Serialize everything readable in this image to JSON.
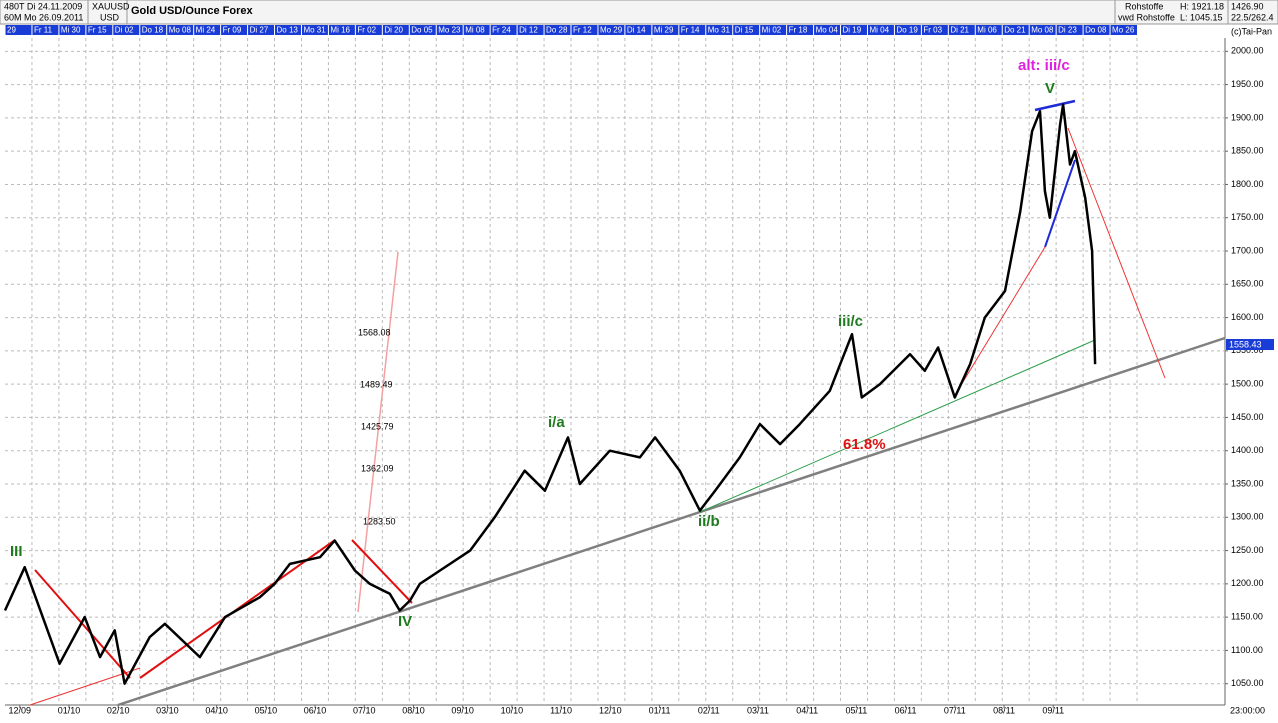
{
  "header": {
    "period": "480T Di 24.11.2009",
    "interval": "60M Mo 26.09.2011",
    "symbol": "XAUUSD",
    "currency": "USD",
    "title": "Gold USD/Ounce  Forex",
    "group": "Rohstoffe",
    "source": "vwd Rohstoffe",
    "high": "H: 1921.18",
    "low": "L: 1045.15",
    "last": "1426.90",
    "range": "22.5/262.4",
    "copyright": "(c)Tai-Pan",
    "dates": [
      "29",
      "Fr 11",
      "Mi 30",
      "Fr 15",
      "Di 02",
      "Do 18",
      "Mo 08",
      "Mi 24",
      "Fr 09",
      "Di 27",
      "Do 13",
      "Mo 31",
      "Mi 16",
      "Fr 02",
      "Di 20",
      "Do 05",
      "Mo 23",
      "Mi 08",
      "Fr 24",
      "Di 12",
      "Do 28",
      "Fr 12",
      "Mo 29",
      "Di 14",
      "Mi 29",
      "Fr 14",
      "Mo 31",
      "Di 15",
      "Mi 02",
      "Fr 18",
      "Mo 04",
      "Di 19",
      "Mi 04",
      "Do 19",
      "Fr 03",
      "Di 21",
      "Mi 06",
      "Do 21",
      "Mo 08",
      "Di 23",
      "Do 08",
      "Mo 26"
    ],
    "time": "23:00:00"
  },
  "annotations": {
    "wave3": "III",
    "wave4": "IV",
    "wave_ia": "i/a",
    "wave_iib": "ii/b",
    "wave_iiic": "iii/c",
    "wave5": "V",
    "alt": "alt: iii/c",
    "fib_pct": "61.8%",
    "fib1": "1568.08",
    "fib2": "1489.49",
    "fib3": "1425.79",
    "fib4": "1362.09",
    "fib5": "1283.50",
    "current": "1558.43"
  },
  "chart_data": {
    "type": "line",
    "color": "#000000",
    "x": [
      -0.3,
      0.1,
      0.81,
      1.32,
      1.63,
      1.93,
      2.13,
      2.64,
      2.95,
      3.66,
      4.17,
      4.88,
      5.18,
      5.49,
      6.1,
      6.4,
      6.81,
      7.11,
      7.52,
      7.72,
      7.93,
      8.13,
      8.54,
      9.15,
      9.65,
      10.26,
      10.67,
      11.14,
      11.38,
      11.99,
      12.6,
      12.91,
      13.41,
      13.82,
      14.13,
      14.63,
      15.04,
      15.45,
      15.85,
      16.46,
      16.67,
      16.91,
      17.11,
      17.48,
      18.09,
      18.39,
      18.66,
      19.0,
      19.31,
      19.61,
      20.02,
      20.33,
      20.57,
      20.73,
      20.83,
      20.93,
      21.14,
      21.2,
      21.34,
      21.44,
      21.65,
      21.79,
      21.85
    ],
    "values": [
      1160,
      1225,
      1080,
      1150,
      1090,
      1130,
      1050,
      1120,
      1140,
      1090,
      1150,
      1180,
      1200,
      1230,
      1240,
      1265,
      1220,
      1200,
      1185,
      1160,
      1175,
      1200,
      1220,
      1250,
      1300,
      1370,
      1340,
      1420,
      1350,
      1400,
      1390,
      1420,
      1370,
      1310,
      1340,
      1390,
      1440,
      1410,
      1440,
      1490,
      1530,
      1575,
      1480,
      1500,
      1545,
      1520,
      1555,
      1480,
      1530,
      1600,
      1640,
      1760,
      1880,
      1910,
      1790,
      1750,
      1890,
      1920,
      1830,
      1850,
      1780,
      1700,
      1530
    ],
    "xlim": [
      -0.3,
      24.49
    ],
    "ylim": [
      1018,
      2020
    ],
    "xticks": [
      {
        "value": 0,
        "label": "12/09"
      },
      {
        "value": 1,
        "label": "01/10"
      },
      {
        "value": 2,
        "label": "02/10"
      },
      {
        "value": 3,
        "label": "03/10"
      },
      {
        "value": 4,
        "label": "04/10"
      },
      {
        "value": 5,
        "label": "05/10"
      },
      {
        "value": 6,
        "label": "06/10"
      },
      {
        "value": 7,
        "label": "07/10"
      },
      {
        "value": 8,
        "label": "08/10"
      },
      {
        "value": 9,
        "label": "09/10"
      },
      {
        "value": 10,
        "label": "10/10"
      },
      {
        "value": 11,
        "label": "11/10"
      },
      {
        "value": 12,
        "label": "12/10"
      },
      {
        "value": 13,
        "label": "01/11"
      },
      {
        "value": 14,
        "label": "02/11"
      },
      {
        "value": 15,
        "label": "03/11"
      },
      {
        "value": 16,
        "label": "04/11"
      },
      {
        "value": 17,
        "label": "05/11"
      },
      {
        "value": 18,
        "label": "06/11"
      },
      {
        "value": 19,
        "label": "07/11"
      },
      {
        "value": 20,
        "label": "08/11"
      },
      {
        "value": 21,
        "label": "09/11"
      }
    ],
    "yticks": [
      {
        "value": 1050,
        "label": "1050.00"
      },
      {
        "value": 1100,
        "label": "1100.00"
      },
      {
        "value": 1150,
        "label": "1150.00"
      },
      {
        "value": 1200,
        "label": "1200.00"
      },
      {
        "value": 1250,
        "label": "1250.00"
      },
      {
        "value": 1300,
        "label": "1300.00"
      },
      {
        "value": 1350,
        "label": "1350.00"
      },
      {
        "value": 1400,
        "label": "1400.00"
      },
      {
        "value": 1450,
        "label": "1450.00"
      },
      {
        "value": 1500,
        "label": "1500.00"
      },
      {
        "value": 1550,
        "label": "1550.00"
      },
      {
        "value": 1600,
        "label": "1600.00"
      },
      {
        "value": 1650,
        "label": "1650.00"
      },
      {
        "value": 1700,
        "label": "1700.00"
      },
      {
        "value": 1750,
        "label": "1750.00"
      },
      {
        "value": 1800,
        "label": "1800.00"
      },
      {
        "value": 1850,
        "label": "1850.00"
      },
      {
        "value": 1900,
        "label": "1900.00"
      },
      {
        "value": 1950,
        "label": "1950.00"
      },
      {
        "value": 2000,
        "label": "2000.00"
      }
    ],
    "grid": true
  }
}
